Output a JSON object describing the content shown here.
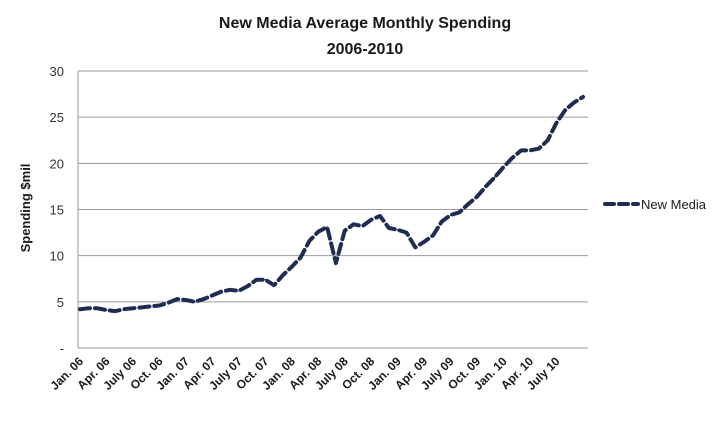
{
  "chart_data": {
    "type": "line",
    "title": "New Media Average Monthly Spending",
    "subtitle": "2006-2010",
    "xlabel": "",
    "ylabel": "Spending $mil",
    "ylim": [
      0,
      30
    ],
    "y_ticks": [
      {
        "value": 0,
        "label": "-"
      },
      {
        "value": 5,
        "label": "5"
      },
      {
        "value": 10,
        "label": "10"
      },
      {
        "value": 15,
        "label": "15"
      },
      {
        "value": 20,
        "label": "20"
      },
      {
        "value": 25,
        "label": "25"
      },
      {
        "value": 30,
        "label": "30"
      }
    ],
    "grid": true,
    "legend_position": "right",
    "x_tick_labels": [
      {
        "index": 0,
        "label": "Jan. 06"
      },
      {
        "index": 3,
        "label": "Apr. 06"
      },
      {
        "index": 6,
        "label": "July 06"
      },
      {
        "index": 9,
        "label": "Oct. 06"
      },
      {
        "index": 12,
        "label": "Jan. 07"
      },
      {
        "index": 15,
        "label": "Apr. 07"
      },
      {
        "index": 18,
        "label": "July 07"
      },
      {
        "index": 21,
        "label": "Oct. 07"
      },
      {
        "index": 24,
        "label": "Jan. 08"
      },
      {
        "index": 27,
        "label": "Apr. 08"
      },
      {
        "index": 30,
        "label": "July 08"
      },
      {
        "index": 33,
        "label": "Oct. 08"
      },
      {
        "index": 36,
        "label": "Jan. 09"
      },
      {
        "index": 39,
        "label": "Apr. 09"
      },
      {
        "index": 42,
        "label": "July 09"
      },
      {
        "index": 45,
        "label": "Oct. 09"
      },
      {
        "index": 48,
        "label": "Jan. 10"
      },
      {
        "index": 51,
        "label": "Apr. 10"
      },
      {
        "index": 54,
        "label": "July 10"
      }
    ],
    "x_count": 58,
    "series": [
      {
        "name": "New Media",
        "color": "#1f2d52",
        "values": [
          4.2,
          4.3,
          4.3,
          4.1,
          4.0,
          4.2,
          4.3,
          4.4,
          4.5,
          4.6,
          4.9,
          5.3,
          5.2,
          5.0,
          5.3,
          5.7,
          6.1,
          6.3,
          6.2,
          6.7,
          7.4,
          7.4,
          6.8,
          7.9,
          8.8,
          9.8,
          11.6,
          12.6,
          13.1,
          9.2,
          12.7,
          13.4,
          13.2,
          13.9,
          14.3,
          13.0,
          12.8,
          12.5,
          10.9,
          11.5,
          12.2,
          13.7,
          14.4,
          14.7,
          15.6,
          16.4,
          17.5,
          18.5,
          19.6,
          20.6,
          21.4,
          21.4,
          21.6,
          22.5,
          24.4,
          25.8,
          26.6,
          27.2
        ]
      }
    ]
  }
}
